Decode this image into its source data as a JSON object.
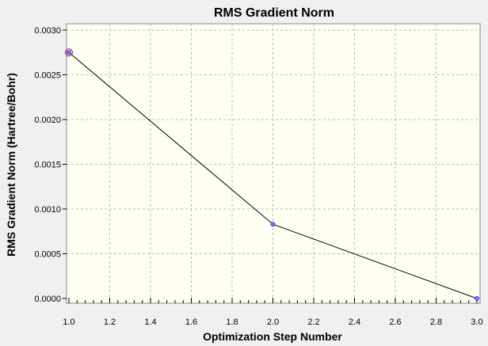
{
  "chart_data": {
    "type": "line",
    "title": "RMS Gradient Norm",
    "xlabel": "Optimization Step Number",
    "ylabel": "RMS Gradient Norm (Hartree/Bohr)",
    "xlim": [
      1.0,
      3.0
    ],
    "ylim": [
      0.0,
      0.003
    ],
    "x_ticks": [
      "1.0",
      "1.2",
      "1.4",
      "1.6",
      "1.8",
      "2.0",
      "2.2",
      "2.4",
      "2.6",
      "2.8",
      "3.0"
    ],
    "y_ticks": [
      "0.0000",
      "0.0005",
      "0.0010",
      "0.0015",
      "0.0020",
      "0.0025",
      "0.0030"
    ],
    "grid": true,
    "series": [
      {
        "x": [
          1,
          2,
          3
        ],
        "y": [
          0.00275,
          0.00083,
          0.0
        ]
      }
    ],
    "colors": {
      "background": "#f0f0f0",
      "plot_background": "#fffff2",
      "line": "#000000",
      "marker": "#3a3aff",
      "highlight_marker": "#cc2a6e",
      "grid": "#b9b9b9"
    }
  }
}
